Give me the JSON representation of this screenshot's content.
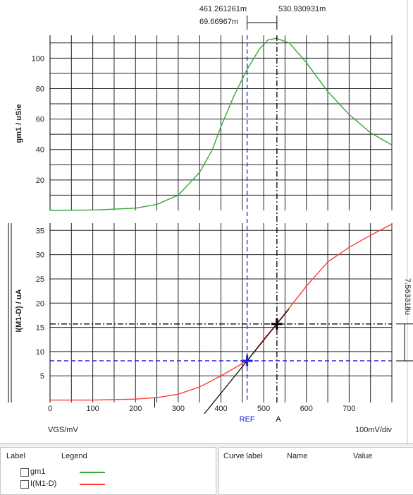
{
  "chart_data": [
    {
      "type": "line",
      "ylabel": "gm1 / uSie",
      "yticks": [
        "20",
        "40",
        "60",
        "80",
        "100"
      ],
      "ylim": [
        0,
        115
      ],
      "xlim": [
        0,
        800
      ],
      "grid": true,
      "series": [
        {
          "name": "gm1",
          "color": "#3aa53a",
          "x": [
            0,
            100,
            200,
            250,
            300,
            350,
            380,
            400,
            430,
            460,
            490,
            510,
            530,
            560,
            600,
            650,
            700,
            750,
            800
          ],
          "y": [
            0,
            0.3,
            1.5,
            4,
            10,
            25,
            40,
            55,
            75,
            92,
            106,
            112,
            113,
            110,
            97,
            78,
            63,
            51,
            43
          ]
        }
      ]
    },
    {
      "type": "line",
      "ylabel": "I(M1-D) / uA",
      "yticks": [
        "5",
        "10",
        "15",
        "20",
        "25",
        "30",
        "35"
      ],
      "xticks": [
        "0",
        "100",
        "200",
        "300",
        "400",
        "500",
        "600",
        "700"
      ],
      "ylim": [
        -0.5,
        36.5
      ],
      "xlim": [
        0,
        800
      ],
      "grid": true,
      "xlabel": "VGS/mV",
      "scale_label": "100mV/div",
      "series": [
        {
          "name": "I(M1-D)",
          "color": "#ff3b30",
          "x": [
            0,
            100,
            200,
            250,
            300,
            350,
            400,
            430,
            461,
            500,
            531,
            560,
            600,
            650,
            700,
            750,
            800
          ],
          "y": [
            0,
            0,
            0.2,
            0.5,
            1.2,
            2.7,
            5.0,
            6.5,
            8.1,
            12.5,
            15.8,
            19,
            23.5,
            28.5,
            31.5,
            34,
            36.3
          ]
        }
      ]
    }
  ],
  "cursors": {
    "ref": {
      "label": "REF",
      "x": 461.261261,
      "y": 8.1,
      "color": "#2020e0"
    },
    "a": {
      "label": "A",
      "x": 530.930931,
      "y": 15.7,
      "color": "#000000"
    },
    "ref_x_text": "461.261261m",
    "a_x_text": "530.930931m",
    "dx_text": "69.66967m",
    "dy_text": "7.563318u"
  },
  "legend": {
    "header_label": "Label",
    "header_legend": "Legend",
    "items": [
      {
        "label": "gm1",
        "color": "#3aa53a"
      },
      {
        "label": "I(M1-D)",
        "color": "#ff3b30"
      }
    ]
  },
  "curve_table": {
    "headers": [
      "Curve label",
      "Name",
      "Value"
    ]
  }
}
